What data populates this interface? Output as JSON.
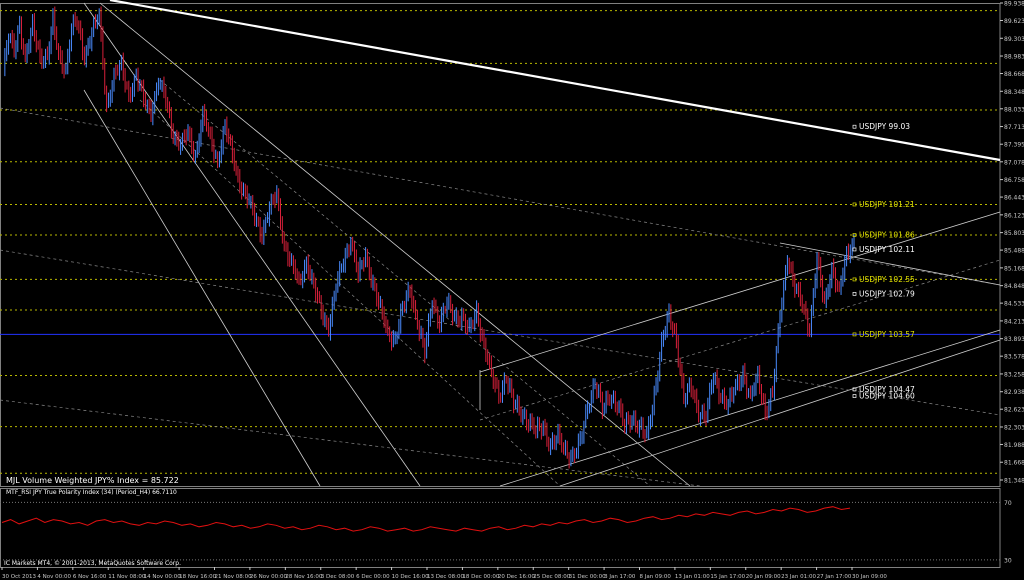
{
  "chart_data": [
    {
      "type": "candlestick",
      "title": "",
      "main_label": "MJL Volume Weighted JPY% Index = 85.722",
      "ylim": [
        81.348,
        89.938
      ],
      "y_ticks": [
        "89.938",
        "89.623",
        "89.303",
        "88.983",
        "88.668",
        "88.348",
        "88.033",
        "87.713",
        "87.395",
        "87.078",
        "86.758",
        "86.443",
        "86.123",
        "85.803",
        "85.488",
        "85.168",
        "84.848",
        "84.533",
        "84.213",
        "83.893",
        "83.578",
        "83.258",
        "82.938",
        "82.623",
        "82.303",
        "81.988",
        "81.668",
        "81.348"
      ],
      "x_ticks": [
        "30 Oct 2013",
        "4 Nov 00:00",
        "6 Nov 16:00",
        "11 Nov 08:00",
        "14 Nov 00:00",
        "18 Nov 16:00",
        "21 Nov 08:00",
        "26 Nov 00:00",
        "28 Nov 16:00",
        "3 Dec 08:00",
        "6 Dec 00:00",
        "10 Dec 16:00",
        "13 Dec 08:00",
        "18 Dec 00:00",
        "20 Dec 16:00",
        "25 Dec 08:00",
        "31 Dec 00:00",
        "3 Jan 17:00",
        "8 Jan 09:00",
        "13 Jan 01:00",
        "15 Jan 17:00",
        "20 Jan 09:00",
        "23 Jan 01:00",
        "27 Jan 17:00",
        "30 Jan 09:00"
      ],
      "price_anchors": [
        [
          0,
          88.7
        ],
        [
          3,
          89.3
        ],
        [
          6,
          89.1
        ],
        [
          9,
          89.6
        ],
        [
          12,
          88.9
        ],
        [
          16,
          89.5
        ],
        [
          20,
          89.0
        ],
        [
          24,
          88.95
        ],
        [
          27,
          89.6
        ],
        [
          30,
          89.0
        ],
        [
          34,
          88.75
        ],
        [
          37,
          89.45
        ],
        [
          40,
          89.6
        ],
        [
          44,
          89.0
        ],
        [
          48,
          89.4
        ],
        [
          52,
          89.7
        ],
        [
          56,
          88.1
        ],
        [
          60,
          88.6
        ],
        [
          64,
          88.8
        ],
        [
          68,
          88.3
        ],
        [
          72,
          88.6
        ],
        [
          76,
          88.2
        ],
        [
          80,
          88.0
        ],
        [
          84,
          88.5
        ],
        [
          88,
          88.2
        ],
        [
          92,
          87.6
        ],
        [
          96,
          87.35
        ],
        [
          100,
          87.6
        ],
        [
          104,
          87.2
        ],
        [
          108,
          87.9
        ],
        [
          112,
          87.5
        ],
        [
          116,
          87.1
        ],
        [
          120,
          87.7
        ],
        [
          124,
          87.2
        ],
        [
          128,
          86.7
        ],
        [
          132,
          86.4
        ],
        [
          136,
          86.1
        ],
        [
          140,
          85.8
        ],
        [
          144,
          86.2
        ],
        [
          148,
          86.5
        ],
        [
          152,
          85.6
        ],
        [
          156,
          85.2
        ],
        [
          160,
          84.9
        ],
        [
          164,
          85.3
        ],
        [
          168,
          84.8
        ],
        [
          172,
          84.4
        ],
        [
          176,
          84.1
        ],
        [
          180,
          84.8
        ],
        [
          184,
          85.3
        ],
        [
          188,
          85.7
        ],
        [
          192,
          85.0
        ],
        [
          196,
          85.4
        ],
        [
          200,
          84.9
        ],
        [
          204,
          84.4
        ],
        [
          208,
          84.0
        ],
        [
          212,
          83.9
        ],
        [
          216,
          84.4
        ],
        [
          220,
          84.8
        ],
        [
          224,
          84.2
        ],
        [
          228,
          83.6
        ],
        [
          232,
          84.6
        ],
        [
          236,
          84.2
        ],
        [
          240,
          84.5
        ],
        [
          244,
          84.3
        ],
        [
          248,
          84.3
        ],
        [
          252,
          84.0
        ],
        [
          256,
          84.4
        ],
        [
          260,
          83.8
        ],
        [
          264,
          83.2
        ],
        [
          268,
          82.9
        ],
        [
          272,
          83.2
        ],
        [
          276,
          82.7
        ],
        [
          280,
          82.6
        ],
        [
          284,
          82.4
        ],
        [
          288,
          82.2
        ],
        [
          292,
          82.35
        ],
        [
          296,
          81.95
        ],
        [
          300,
          82.1
        ],
        [
          304,
          81.9
        ],
        [
          308,
          81.75
        ],
        [
          312,
          82.0
        ],
        [
          316,
          82.7
        ],
        [
          320,
          83.1
        ],
        [
          324,
          82.6
        ],
        [
          328,
          82.9
        ],
        [
          332,
          82.7
        ],
        [
          336,
          82.3
        ],
        [
          340,
          82.5
        ],
        [
          344,
          82.3
        ],
        [
          348,
          82.1
        ],
        [
          352,
          82.9
        ],
        [
          356,
          83.8
        ],
        [
          360,
          84.3
        ],
        [
          364,
          83.9
        ],
        [
          368,
          82.8
        ],
        [
          372,
          83.0
        ],
        [
          376,
          82.6
        ],
        [
          380,
          82.5
        ],
        [
          384,
          83.2
        ],
        [
          388,
          82.9
        ],
        [
          392,
          82.7
        ],
        [
          396,
          83.0
        ],
        [
          400,
          83.3
        ],
        [
          404,
          82.8
        ],
        [
          408,
          83.2
        ],
        [
          412,
          82.6
        ],
        [
          416,
          82.9
        ],
        [
          420,
          84.3
        ],
        [
          424,
          85.4
        ],
        [
          428,
          84.8
        ],
        [
          432,
          84.5
        ],
        [
          436,
          84.1
        ],
        [
          440,
          85.3
        ],
        [
          444,
          84.5
        ],
        [
          448,
          85.2
        ],
        [
          452,
          84.7
        ],
        [
          456,
          85.4
        ],
        [
          460,
          85.7
        ]
      ],
      "horizontal_levels": [
        {
          "value": 89.8,
          "color": "#b8b800",
          "style": "dashed"
        },
        {
          "value": 88.85,
          "color": "#b8b800",
          "style": "dashed"
        },
        {
          "value": 88.01,
          "color": "#b8b800",
          "style": "dashed"
        },
        {
          "value": 87.08,
          "color": "#b8b800",
          "style": "dashed"
        },
        {
          "value": 86.31,
          "color": "#b8b800",
          "style": "dashed"
        },
        {
          "value": 85.76,
          "color": "#b8b800",
          "style": "dashed"
        },
        {
          "value": 84.96,
          "color": "#b8b800",
          "style": "dashed"
        },
        {
          "value": 84.41,
          "color": "#b8b800",
          "style": "dashed"
        },
        {
          "value": 83.97,
          "color": "#2233ff",
          "style": "solid"
        },
        {
          "value": 83.23,
          "color": "#b8b800",
          "style": "dashed"
        },
        {
          "value": 82.31,
          "color": "#b8b800",
          "style": "dashed"
        },
        {
          "value": 81.47,
          "color": "#b8b800",
          "style": "dashed"
        }
      ],
      "level_labels": [
        {
          "text": "USDJPY  99.03",
          "value": 87.71,
          "color": "#ffffff"
        },
        {
          "text": "USDJPY  101.21",
          "value": 86.31,
          "color": "#e0e000"
        },
        {
          "text": "USDJPY  101.86",
          "value": 85.76,
          "color": "#e0e000"
        },
        {
          "text": "USDJPY  102.11",
          "value": 85.5,
          "color": "#ffffff"
        },
        {
          "text": "USDJPY  102.55",
          "value": 84.96,
          "color": "#e0e000"
        },
        {
          "text": "USDJPY  102.79",
          "value": 84.7,
          "color": "#ffffff"
        },
        {
          "text": "USDJPY  103.57",
          "value": 83.97,
          "color": "#e0e000"
        },
        {
          "text": "USDJPY  104.47",
          "value": 82.98,
          "color": "#ffffff"
        },
        {
          "text": "USDJPY  104.60",
          "value": 82.86,
          "color": "#ffffff"
        }
      ],
      "colors": {
        "bull": "#4a8cff",
        "bear": "#d8203a",
        "grid_label": "#c8c8c8",
        "background": "#000000"
      }
    },
    {
      "type": "line",
      "title": "",
      "main_label": "MTF_RSI JPY True Polarity Index (34) (Period_H4) 66.7110",
      "ylim": [
        25,
        80
      ],
      "y_ticks": [
        "70",
        "30"
      ],
      "series": [
        {
          "color": "#e01010",
          "values": [
            56,
            58,
            55,
            57,
            59,
            56,
            58,
            57,
            55,
            56,
            54,
            57,
            58,
            56,
            57,
            55,
            54,
            56,
            55,
            57,
            56,
            54,
            55,
            53,
            54,
            56,
            55,
            53,
            54,
            52,
            53,
            55,
            54,
            52,
            53,
            51,
            52,
            54,
            53,
            51,
            52,
            50,
            51,
            53,
            52,
            50,
            51,
            52,
            50,
            51,
            53,
            52,
            51,
            50,
            52,
            51,
            50,
            52,
            53,
            51,
            52,
            54,
            53,
            55,
            54,
            56,
            55,
            57,
            58,
            56,
            57,
            59,
            58,
            56,
            57,
            59,
            60,
            58,
            59,
            61,
            60,
            62,
            61,
            63,
            62,
            61,
            63,
            64,
            62,
            63,
            65,
            64,
            66,
            65,
            63,
            64,
            66,
            67,
            65,
            66
          ]
        }
      ]
    }
  ],
  "footer": {
    "copyright": "IC Markets MT4, © 2001-2013, MetaQuotes Software Corp."
  }
}
